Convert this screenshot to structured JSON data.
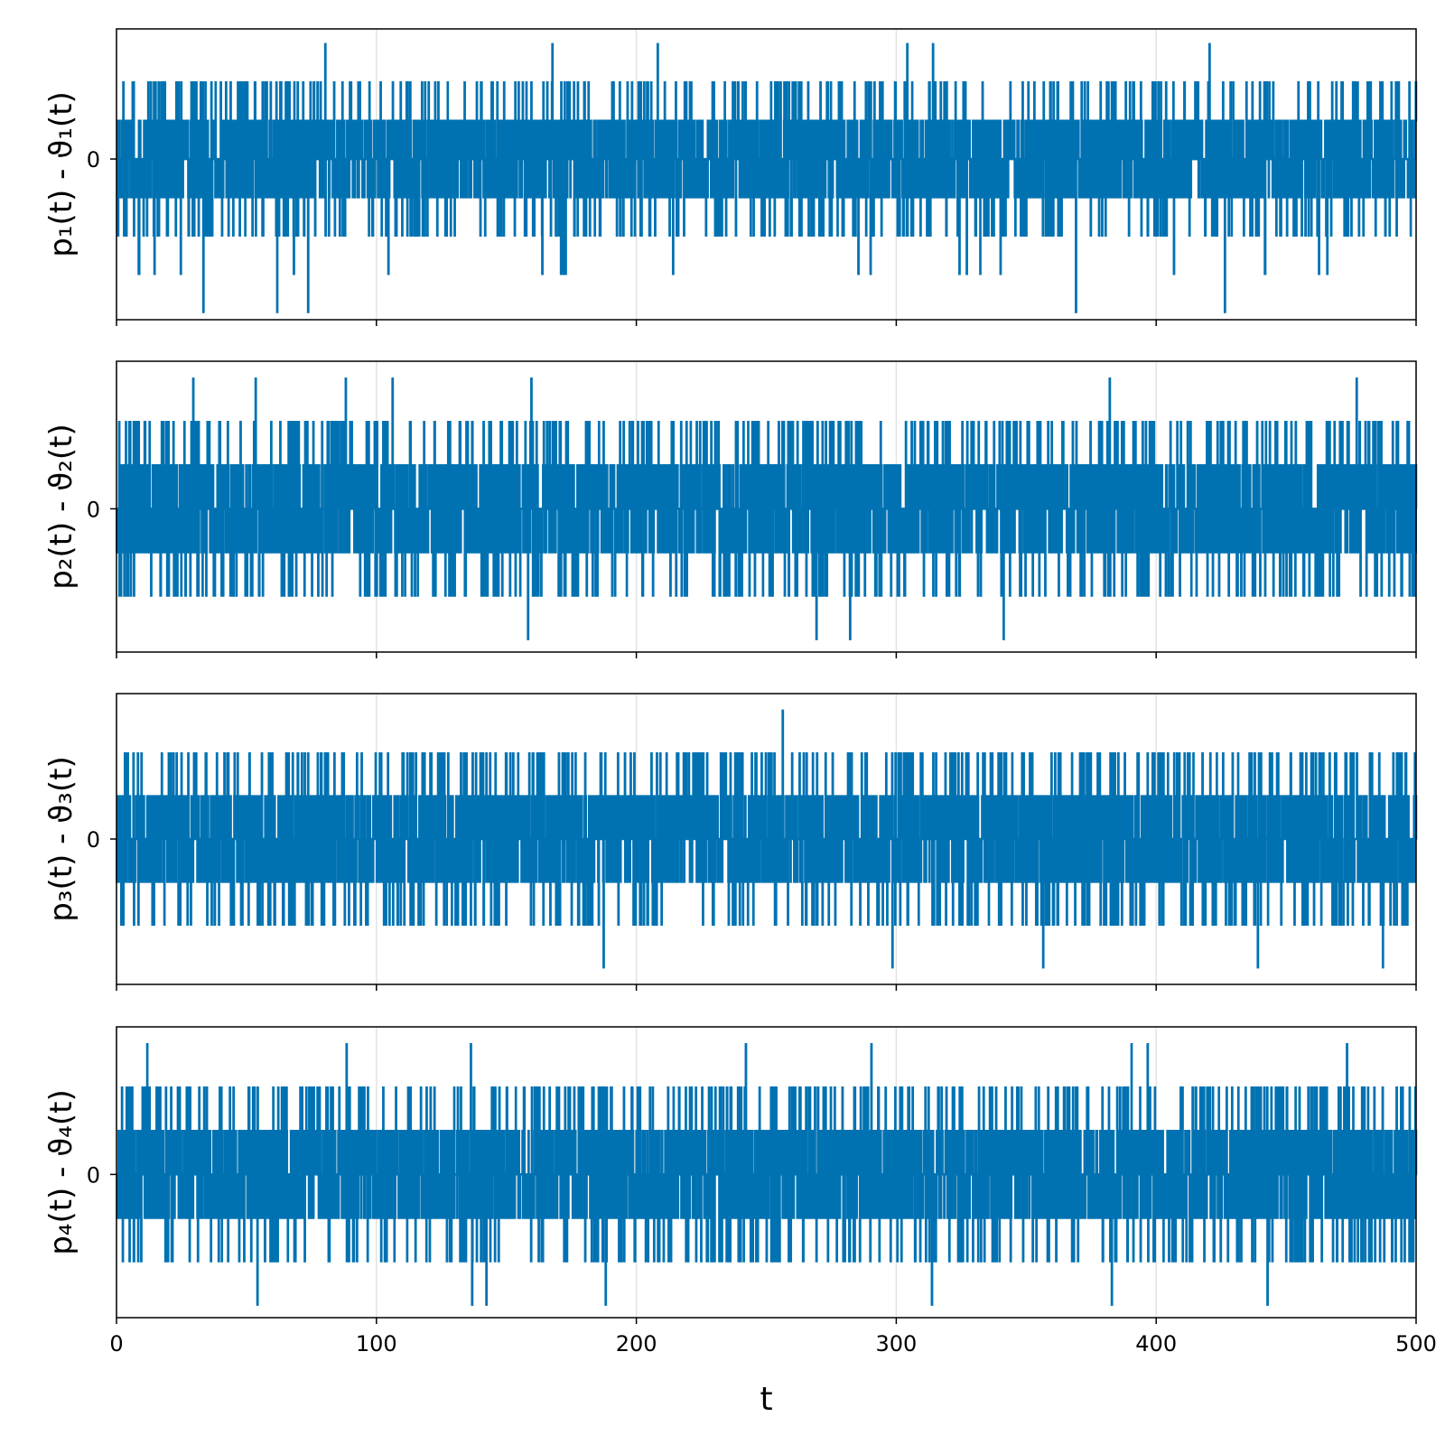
{
  "colors": {
    "series": "#0072b2",
    "grid": "#e3e3e3",
    "frame": "#000000"
  },
  "chart_data": {
    "type": "line",
    "shared_x_axis": true,
    "xlabel": "t",
    "xlim": [
      0,
      500
    ],
    "x_ticks": [
      0,
      100,
      200,
      300,
      400,
      500
    ],
    "grid": true,
    "step": 0.1,
    "levels": [
      -4,
      -3,
      -2,
      -1,
      0,
      1,
      2,
      3,
      4
    ],
    "ylim": [
      -4.2,
      3.4
    ],
    "panels": [
      {
        "ylabel": "p₁(t) - ϑ₁(t)",
        "y_ticks": [
          0
        ],
        "ylim": [
          -4.2,
          3.4
        ],
        "max": 3,
        "min": -4,
        "extreme_times": [
          80.3,
          167.7,
          208.2,
          304.2,
          314.1,
          420.5
        ],
        "low_times": [
          33.4,
          61.8,
          73.7,
          369.1,
          426.4
        ]
      },
      {
        "ylabel": "p₂(t) - ϑ₂(t)",
        "y_ticks": [
          0
        ],
        "ylim": [
          -3.3,
          3.4
        ],
        "max": 3,
        "min": -3,
        "extreme_times": [
          29.5,
          53.5,
          88.2,
          106.2,
          159.6,
          382.1,
          477.1
        ],
        "low_times": [
          158.3,
          269.3,
          282.2,
          341.3
        ]
      },
      {
        "ylabel": "p₃(t) - ϑ₃(t)",
        "y_ticks": [
          0
        ],
        "ylim": [
          -3.4,
          3.4
        ],
        "max": 3,
        "min": -3,
        "extreme_times": [
          256.3
        ],
        "low_times": [
          187.4,
          298.5,
          356.5,
          439.1,
          487.2
        ]
      },
      {
        "ylabel": "p₄(t) - ϑ₄(t)",
        "y_ticks": [
          0
        ],
        "ylim": [
          -3.3,
          3.4
        ],
        "max": 3,
        "min": -3,
        "extreme_times": [
          11.8,
          88.5,
          136.3,
          242.1,
          290.4,
          390.5,
          396.7,
          473.4
        ],
        "low_times": [
          54.2,
          136.8,
          142.3,
          188.2,
          313.7,
          382.9,
          442.8
        ]
      }
    ]
  }
}
